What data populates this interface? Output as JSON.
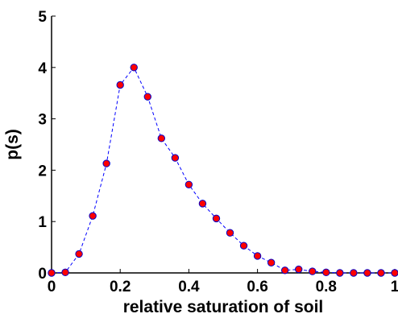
{
  "chart_data": {
    "type": "line",
    "title": "",
    "xlabel": "relative saturation of soil",
    "ylabel": "p(s)",
    "xlim": [
      0,
      1
    ],
    "ylim": [
      0,
      5
    ],
    "x_ticks": [
      "0",
      "0.2",
      "0.4",
      "0.6",
      "0.8",
      "1"
    ],
    "y_ticks": [
      "0",
      "1",
      "2",
      "3",
      "4",
      "5"
    ],
    "grid": false,
    "legend": "none",
    "colors": {
      "line": "#0000ff",
      "marker_fill": "#ff0000",
      "marker_edge": "#0000cc",
      "axes": "#000000"
    },
    "series": [
      {
        "x": [
          0,
          0.04,
          0.08,
          0.12,
          0.16,
          0.2,
          0.24,
          0.28,
          0.32,
          0.36,
          0.4,
          0.44,
          0.48,
          0.52,
          0.56,
          0.6,
          0.64,
          0.68,
          0.72,
          0.76,
          0.8,
          0.84,
          0.88,
          0.92,
          0.96,
          1.0
        ],
        "y": [
          0.0,
          0.01,
          0.37,
          1.11,
          2.13,
          3.66,
          4.0,
          3.43,
          2.62,
          2.24,
          1.72,
          1.35,
          1.06,
          0.78,
          0.53,
          0.33,
          0.2,
          0.05,
          0.07,
          0.03,
          0.01,
          0.0,
          0.0,
          0.0,
          0.0,
          0.0
        ]
      }
    ]
  }
}
